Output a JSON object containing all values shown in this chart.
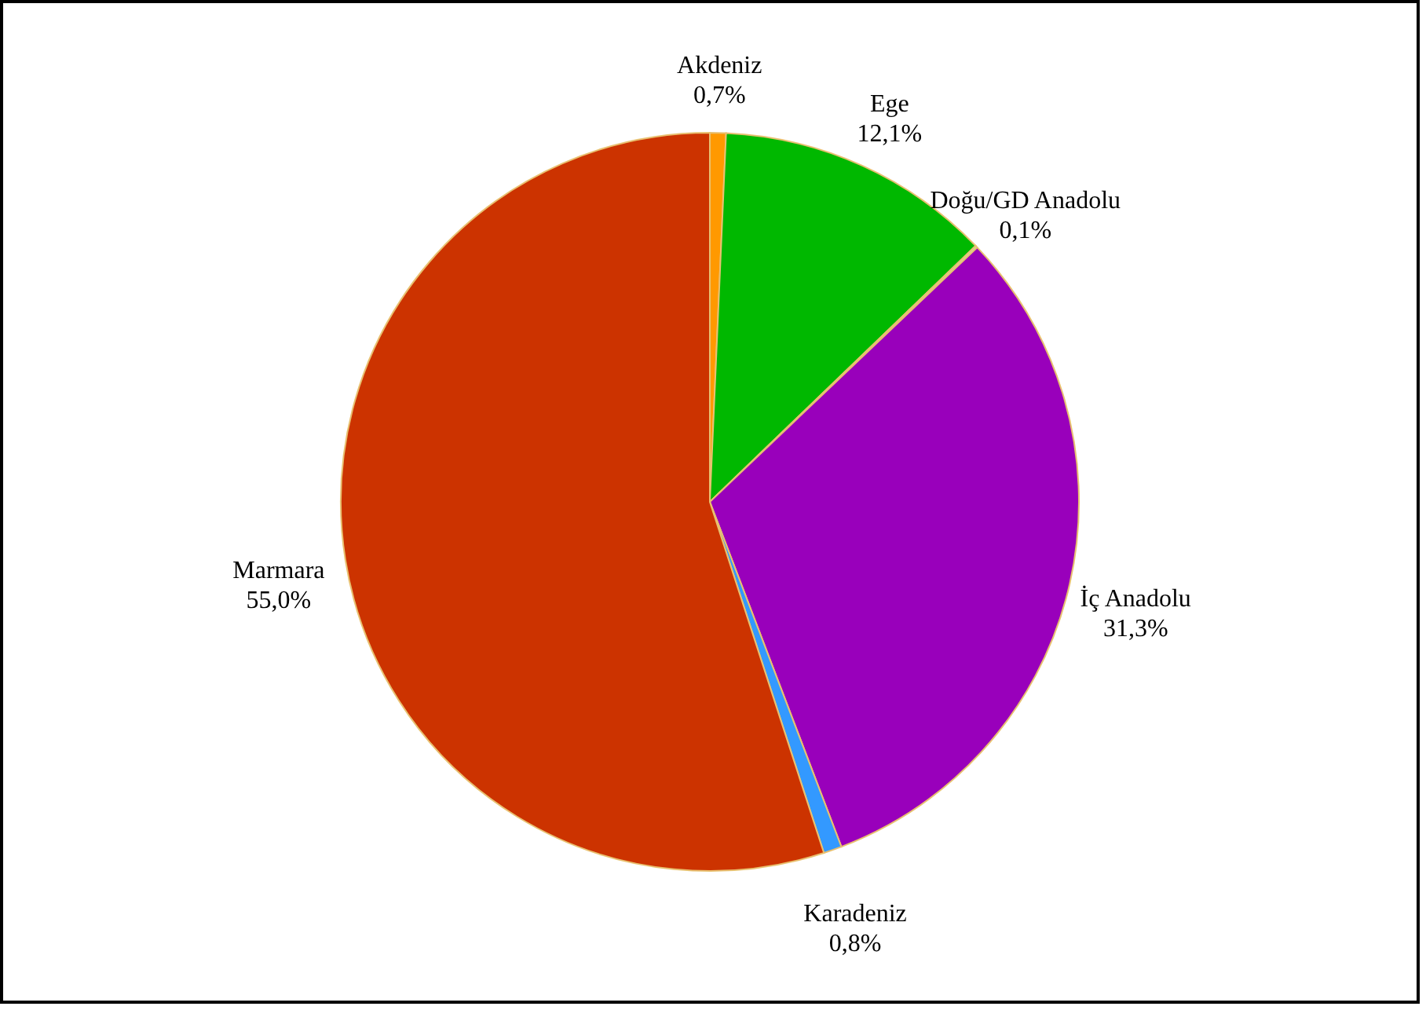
{
  "chart_data": {
    "type": "pie",
    "categories": [
      "Akdeniz",
      "Ege",
      "Doğu/GD Anadolu",
      "İç Anadolu",
      "Karadeniz",
      "Marmara"
    ],
    "values": [
      0.7,
      12.1,
      0.1,
      31.3,
      0.8,
      55.0
    ],
    "value_labels": [
      "0,7%",
      "12,1%",
      "0,1%",
      "31,3%",
      "0,8%",
      "55,0%"
    ],
    "colors": [
      "#ff9900",
      "#00b800",
      "#c9e6a0",
      "#9900bb",
      "#3399ff",
      "#cc3300"
    ],
    "legend": false
  }
}
